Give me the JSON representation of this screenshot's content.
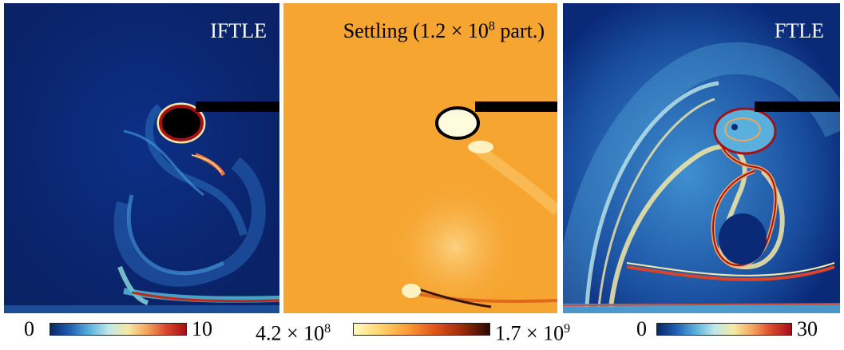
{
  "panels": [
    {
      "title": "IFTLE"
    },
    {
      "title_prefix": "Settling (1.2 × 10",
      "title_exp": "8",
      "title_suffix": " part.)"
    },
    {
      "title": "FTLE"
    }
  ],
  "colorbars": [
    {
      "min": "0",
      "max": "10",
      "colormap": "blue-cyan-yellow-red"
    },
    {
      "min_base": "4.2 × 10",
      "min_exp": "8",
      "max_base": "1.7 × 10",
      "max_exp": "9",
      "colormap": "yellow-orange-black"
    },
    {
      "min": "0",
      "max": "30",
      "colormap": "blue-cyan-yellow-red"
    }
  ],
  "colors": {
    "ftle_background": "#0a2a78",
    "settling_background": "#f6a530",
    "obstacle": "#000000"
  }
}
